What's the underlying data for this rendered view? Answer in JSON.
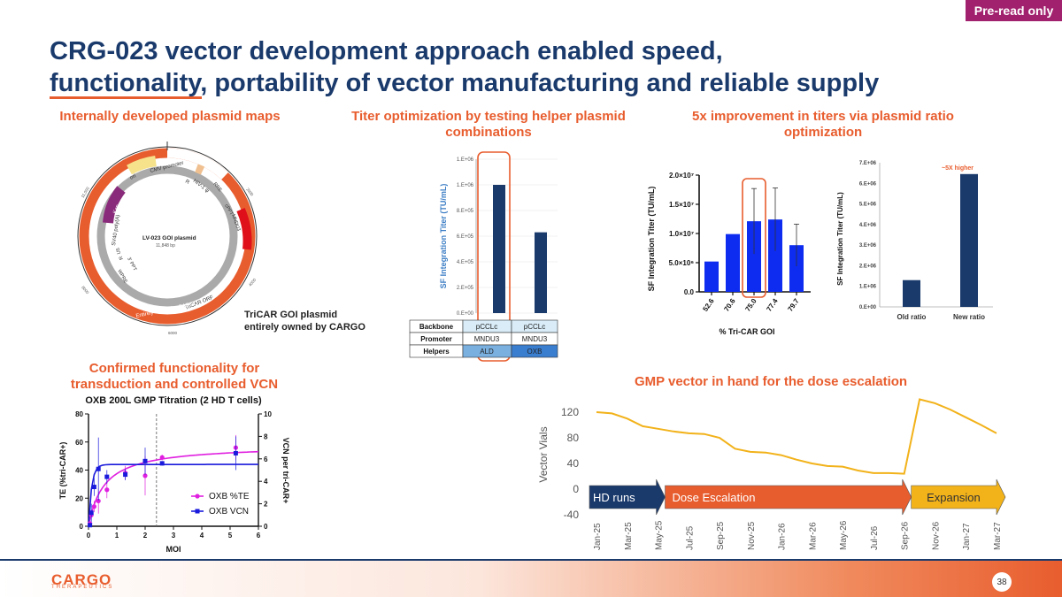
{
  "badge": "Pre-read only",
  "title_line1": "CRG-023 vector development approach enabled speed,",
  "title_line2": "functionality, portability of vector manufacturing and reliable supply",
  "sections": {
    "plasmid": "Internally developed plasmid maps",
    "titer_helper": "Titer optimization by testing helper plasmid combinations",
    "ratio": "5x improvement in titers via plasmid ratio optimization",
    "functionality": "Confirmed functionality for transduction and controlled VCN",
    "gmp": "GMP vector in hand for the dose escalation"
  },
  "plasmid_map": {
    "name": "LV-023 GOI plasmid",
    "size": "11,848 bp",
    "caption_line1": "TriCAR GOI plasmid",
    "caption_line2": "entirely owned by CARGO",
    "feature_labels": [
      "ori",
      "CMV promoter",
      "R",
      "HIV-1 ψ",
      "RRE",
      "cPPT",
      "MNDU3",
      "Kan",
      "SV40 poly(A)",
      "U5",
      "R",
      "3' PPT",
      "WPRE",
      "TriCAR ORF",
      "Entirely owned by CARGO"
    ],
    "tick_labels": [
      "11,000",
      "2000",
      "4000",
      "6000",
      "8000"
    ]
  },
  "footer": {
    "logo": "CARGO",
    "logo_sub": "THERAPEUTICS",
    "page": "38"
  },
  "chart_data": [
    {
      "type": "bar",
      "title": "Titer optimization by testing helper plasmid combinations",
      "ylabel": "SF Integration Titer (TU/mL)",
      "ylim": [
        0,
        1200000
      ],
      "yticks": [
        "0.E+00",
        "2.E+05",
        "4.E+05",
        "6.E+05",
        "8.E+05",
        "1.E+06",
        "1.E+06"
      ],
      "categories": [
        "pCCLc / MNDU3 / ALD",
        "pCCLc / MNDU3 / OXB"
      ],
      "values": [
        1000000,
        630000
      ],
      "table": {
        "row_headers": [
          "Backbone",
          "Promoter",
          "Helpers"
        ],
        "col1": [
          "pCCLc",
          "MNDU3",
          "ALD"
        ],
        "col2": [
          "pCCLc",
          "MNDU3",
          "OXB"
        ]
      }
    },
    {
      "type": "bar",
      "title": "% Tri-CAR GOI",
      "xlabel": "% Tri-CAR GOI",
      "ylabel": "SF Integration Titer (TU/mL)",
      "ylim": [
        0,
        20000000
      ],
      "yticks": [
        "0.0",
        "5.0×10⁶",
        "1.0×10⁷",
        "1.5×10⁷",
        "2.0×10⁷"
      ],
      "categories": [
        "52.6",
        "70.6",
        "75.0",
        "77.4",
        "79.7"
      ],
      "values": [
        5200000,
        9900000,
        12100000,
        12400000,
        8000000
      ],
      "errors": [
        0,
        0,
        5600000,
        5400000,
        3600000
      ]
    },
    {
      "type": "bar",
      "title": "5x improvement in titers via plasmid ratio optimization",
      "ylabel": "SF Integration Titer (TU/mL)",
      "ylim": [
        0,
        7000000
      ],
      "yticks": [
        "0.E+00",
        "1.E+06",
        "2.E+06",
        "3.E+06",
        "4.E+06",
        "5.E+06",
        "6.E+06",
        "7.E+06"
      ],
      "categories": [
        "Old ratio",
        "New ratio"
      ],
      "values": [
        1300000,
        6450000
      ],
      "annotation": "~5X higher"
    },
    {
      "type": "line",
      "title": "OXB 200L GMP Titration (2 HD T cells)",
      "xlabel": "MOI",
      "ylabel": "TE (%tri-CAR+)",
      "y2label": "VCN per tri-CAR+",
      "xlim": [
        0,
        6
      ],
      "ylim": [
        0,
        80
      ],
      "y2lim": [
        0,
        10
      ],
      "xticks": [
        "0",
        "1",
        "2",
        "3",
        "4",
        "5",
        "6"
      ],
      "yticks": [
        "0",
        "20",
        "40",
        "60",
        "80"
      ],
      "y2ticks": [
        "0",
        "2",
        "4",
        "6",
        "8",
        "10"
      ],
      "cutoff_x": 2.4,
      "series": [
        {
          "name": "OXB %TE",
          "color": "#e020e0",
          "axis": "left",
          "x": [
            0.05,
            0.1,
            0.2,
            0.35,
            0.65,
            1.3,
            2.0,
            2.6,
            5.2
          ],
          "y": [
            2,
            8,
            14,
            18,
            26,
            38,
            36,
            49,
            56
          ],
          "err": [
            1,
            3,
            4,
            9,
            6,
            5,
            14,
            2,
            9
          ]
        },
        {
          "name": "OXB VCN",
          "color": "#1a1adc",
          "axis": "right",
          "x": [
            0.05,
            0.1,
            0.2,
            0.35,
            0.65,
            1.3,
            2.0,
            2.6,
            5.2
          ],
          "y": [
            0.1,
            1.2,
            3.5,
            5.1,
            4.4,
            4.6,
            5.8,
            5.6,
            6.5
          ],
          "err": [
            0.1,
            0.8,
            0.8,
            2.8,
            0.6,
            0.5,
            1.2,
            0.2,
            1.5
          ]
        }
      ]
    },
    {
      "type": "line",
      "title": "GMP vector in hand for the dose escalation",
      "ylabel": "Vector Vials",
      "ylim": [
        -40,
        120
      ],
      "yticks": [
        "-40",
        "0",
        "40",
        "80",
        "120"
      ],
      "x": [
        "Jan-25",
        "Feb-25",
        "Mar-25",
        "Apr-25",
        "May-25",
        "Jun-25",
        "Jul-25",
        "Aug-25",
        "Sep-25",
        "Oct-25",
        "Nov-25",
        "Dec-25",
        "Jan-26",
        "Feb-26",
        "Mar-26",
        "Apr-26",
        "May-26",
        "Jun-26",
        "Jul-26",
        "Aug-26",
        "Sep-26",
        "Oct-26",
        "Nov-26",
        "Dec-26",
        "Jan-27",
        "Feb-27",
        "Mar-27"
      ],
      "xtick_labels": [
        "Jan-25",
        "Mar-25",
        "May-25",
        "Jul-25",
        "Sep-25",
        "Nov-25",
        "Jan-26",
        "Mar-26",
        "May-26",
        "Jul-26",
        "Sep-26",
        "Nov-26",
        "Jan-27",
        "Mar-27"
      ],
      "values": [
        120,
        118,
        110,
        98,
        94,
        90,
        87,
        86,
        80,
        63,
        58,
        57,
        53,
        46,
        40,
        36,
        35,
        29,
        25,
        25,
        24,
        140,
        134,
        124,
        112,
        100,
        87
      ],
      "color": "#f2b21a",
      "phases": [
        {
          "label": "HD runs",
          "color": "#1a3a6c"
        },
        {
          "label": "Dose Escalation",
          "color": "#e85d2e"
        },
        {
          "label": "Expansion",
          "color": "#f2b21a"
        }
      ]
    }
  ]
}
